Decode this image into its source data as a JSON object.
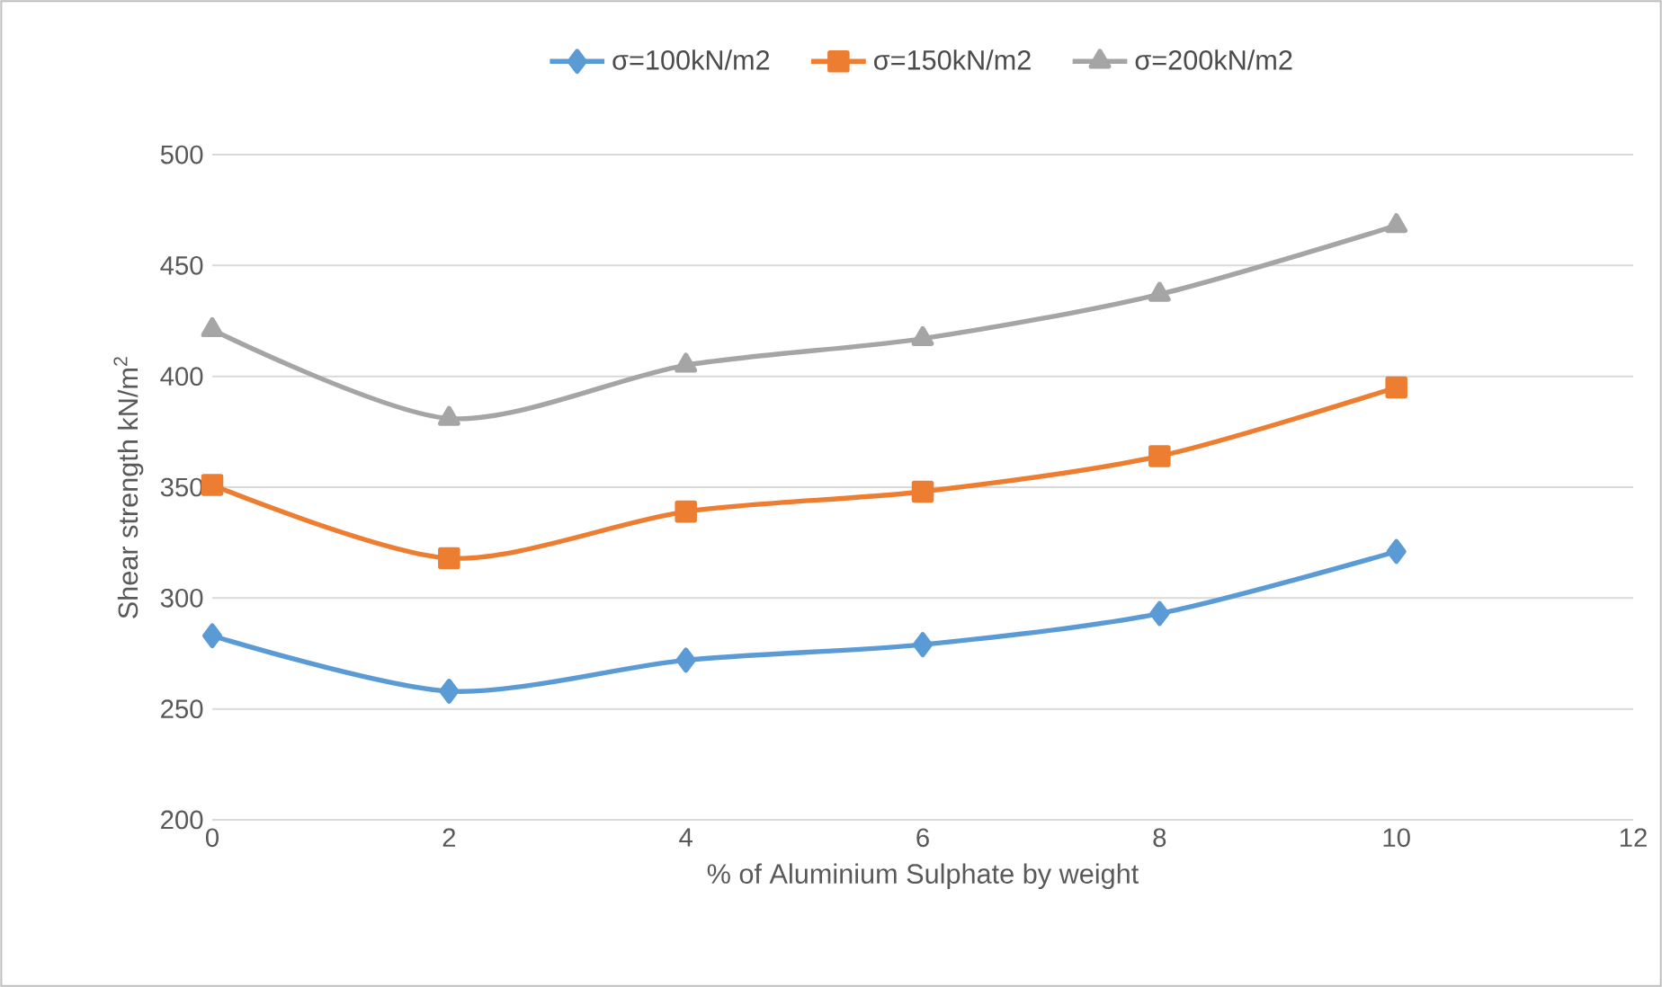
{
  "chart_data": {
    "type": "line",
    "xlabel": "% of Aluminium Sulphate by weight",
    "ylabel": "Shear strength kN/m$^{2}$",
    "x": [
      0,
      2,
      4,
      6,
      8,
      10
    ],
    "series": [
      {
        "name": "σ=100kN/m2",
        "color": "#5b9bd5",
        "marker": "diamond",
        "values": [
          283,
          258,
          272,
          279,
          293,
          321
        ]
      },
      {
        "name": "σ=150kN/m2",
        "color": "#ed7d31",
        "marker": "square",
        "values": [
          351,
          318,
          339,
          348,
          364,
          395
        ]
      },
      {
        "name": "σ=200kN/m2",
        "color": "#a5a5a5",
        "marker": "triangle",
        "values": [
          421,
          381,
          405,
          417,
          437,
          468
        ]
      }
    ],
    "xlim": [
      0,
      12
    ],
    "xticks": [
      0,
      2,
      4,
      6,
      8,
      10,
      12
    ],
    "ylim": [
      200,
      500
    ],
    "yticks": [
      200,
      250,
      300,
      350,
      400,
      450,
      500
    ],
    "grid": "y",
    "legend": "top",
    "line_style": "solid"
  }
}
